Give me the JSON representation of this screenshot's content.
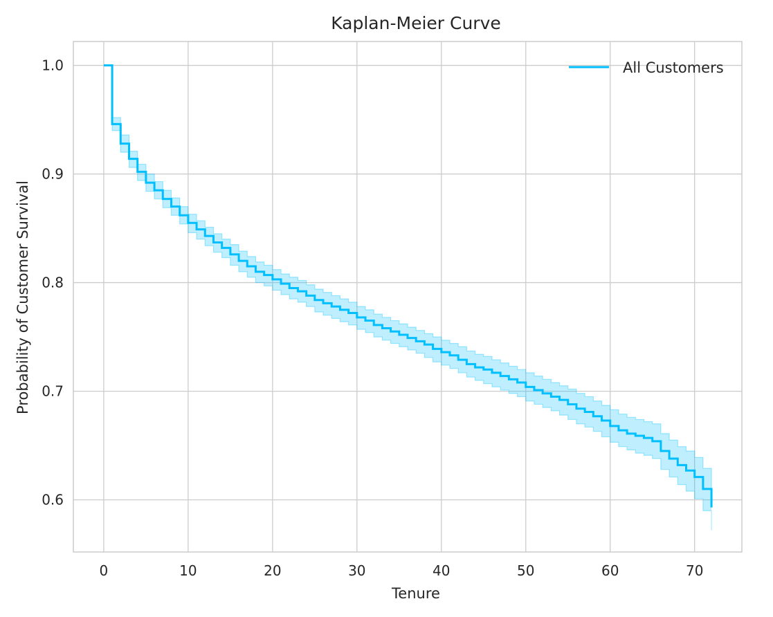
{
  "chart_data": {
    "type": "line",
    "title": "Kaplan-Meier Curve",
    "xlabel": "Tenure",
    "ylabel": "Probability of Customer Survival",
    "xlim": [
      -3.6,
      75.6
    ],
    "ylim": [
      0.552,
      1.022
    ],
    "x_ticks": [
      0,
      10,
      20,
      30,
      40,
      50,
      60,
      70
    ],
    "y_ticks": [
      0.6,
      0.7,
      0.8,
      0.9,
      1.0
    ],
    "x_tick_labels": [
      "0",
      "10",
      "20",
      "30",
      "40",
      "50",
      "60",
      "70"
    ],
    "y_tick_labels": [
      "0.6",
      "0.7",
      "0.8",
      "0.9",
      "1.0"
    ],
    "grid": true,
    "legend_position": "top-right",
    "colors": {
      "line": "#00bfff",
      "band": "#00bfff",
      "grid": "#cccccc",
      "axes": "#cccccc",
      "text": "#262626"
    },
    "series": [
      {
        "name": "All Customers",
        "step": "post",
        "x": [
          0,
          1,
          2,
          3,
          4,
          5,
          6,
          7,
          8,
          9,
          10,
          11,
          12,
          13,
          14,
          15,
          16,
          17,
          18,
          19,
          20,
          21,
          22,
          23,
          24,
          25,
          26,
          27,
          28,
          29,
          30,
          31,
          32,
          33,
          34,
          35,
          36,
          37,
          38,
          39,
          40,
          41,
          42,
          43,
          44,
          45,
          46,
          47,
          48,
          49,
          50,
          51,
          52,
          53,
          54,
          55,
          56,
          57,
          58,
          59,
          60,
          61,
          62,
          63,
          64,
          65,
          66,
          67,
          68,
          69,
          70,
          71,
          72
        ],
        "y": [
          1.0,
          0.946,
          0.928,
          0.914,
          0.902,
          0.892,
          0.885,
          0.877,
          0.87,
          0.862,
          0.855,
          0.849,
          0.843,
          0.837,
          0.832,
          0.826,
          0.82,
          0.815,
          0.81,
          0.807,
          0.803,
          0.799,
          0.795,
          0.792,
          0.788,
          0.784,
          0.781,
          0.778,
          0.775,
          0.772,
          0.768,
          0.765,
          0.761,
          0.758,
          0.755,
          0.752,
          0.749,
          0.746,
          0.743,
          0.739,
          0.736,
          0.733,
          0.729,
          0.725,
          0.722,
          0.72,
          0.717,
          0.714,
          0.711,
          0.708,
          0.704,
          0.701,
          0.698,
          0.695,
          0.692,
          0.688,
          0.684,
          0.681,
          0.677,
          0.673,
          0.668,
          0.664,
          0.661,
          0.659,
          0.657,
          0.654,
          0.645,
          0.638,
          0.632,
          0.627,
          0.621,
          0.61,
          0.602
        ],
        "end_y": 0.593,
        "ci_lower": [
          1.0,
          0.94,
          0.92,
          0.906,
          0.894,
          0.884,
          0.877,
          0.869,
          0.862,
          0.854,
          0.846,
          0.84,
          0.834,
          0.828,
          0.823,
          0.816,
          0.81,
          0.805,
          0.8,
          0.797,
          0.793,
          0.789,
          0.785,
          0.782,
          0.778,
          0.773,
          0.77,
          0.767,
          0.764,
          0.761,
          0.757,
          0.754,
          0.75,
          0.747,
          0.744,
          0.741,
          0.738,
          0.735,
          0.731,
          0.727,
          0.724,
          0.721,
          0.717,
          0.713,
          0.71,
          0.707,
          0.704,
          0.701,
          0.698,
          0.695,
          0.691,
          0.688,
          0.685,
          0.682,
          0.678,
          0.674,
          0.67,
          0.667,
          0.663,
          0.658,
          0.653,
          0.649,
          0.646,
          0.643,
          0.641,
          0.638,
          0.628,
          0.621,
          0.614,
          0.608,
          0.601,
          0.59,
          0.583
        ],
        "ci_upper": [
          1.0,
          0.952,
          0.936,
          0.921,
          0.909,
          0.9,
          0.893,
          0.885,
          0.878,
          0.87,
          0.863,
          0.857,
          0.851,
          0.845,
          0.84,
          0.835,
          0.829,
          0.824,
          0.819,
          0.816,
          0.812,
          0.808,
          0.805,
          0.802,
          0.798,
          0.794,
          0.791,
          0.788,
          0.785,
          0.782,
          0.778,
          0.775,
          0.771,
          0.768,
          0.765,
          0.762,
          0.759,
          0.756,
          0.753,
          0.75,
          0.747,
          0.744,
          0.741,
          0.737,
          0.734,
          0.732,
          0.729,
          0.726,
          0.723,
          0.72,
          0.717,
          0.714,
          0.711,
          0.708,
          0.705,
          0.702,
          0.698,
          0.695,
          0.691,
          0.687,
          0.683,
          0.679,
          0.676,
          0.674,
          0.672,
          0.67,
          0.661,
          0.655,
          0.649,
          0.645,
          0.639,
          0.629,
          0.621
        ],
        "end_ci": [
          0.572,
          0.611
        ]
      }
    ]
  }
}
